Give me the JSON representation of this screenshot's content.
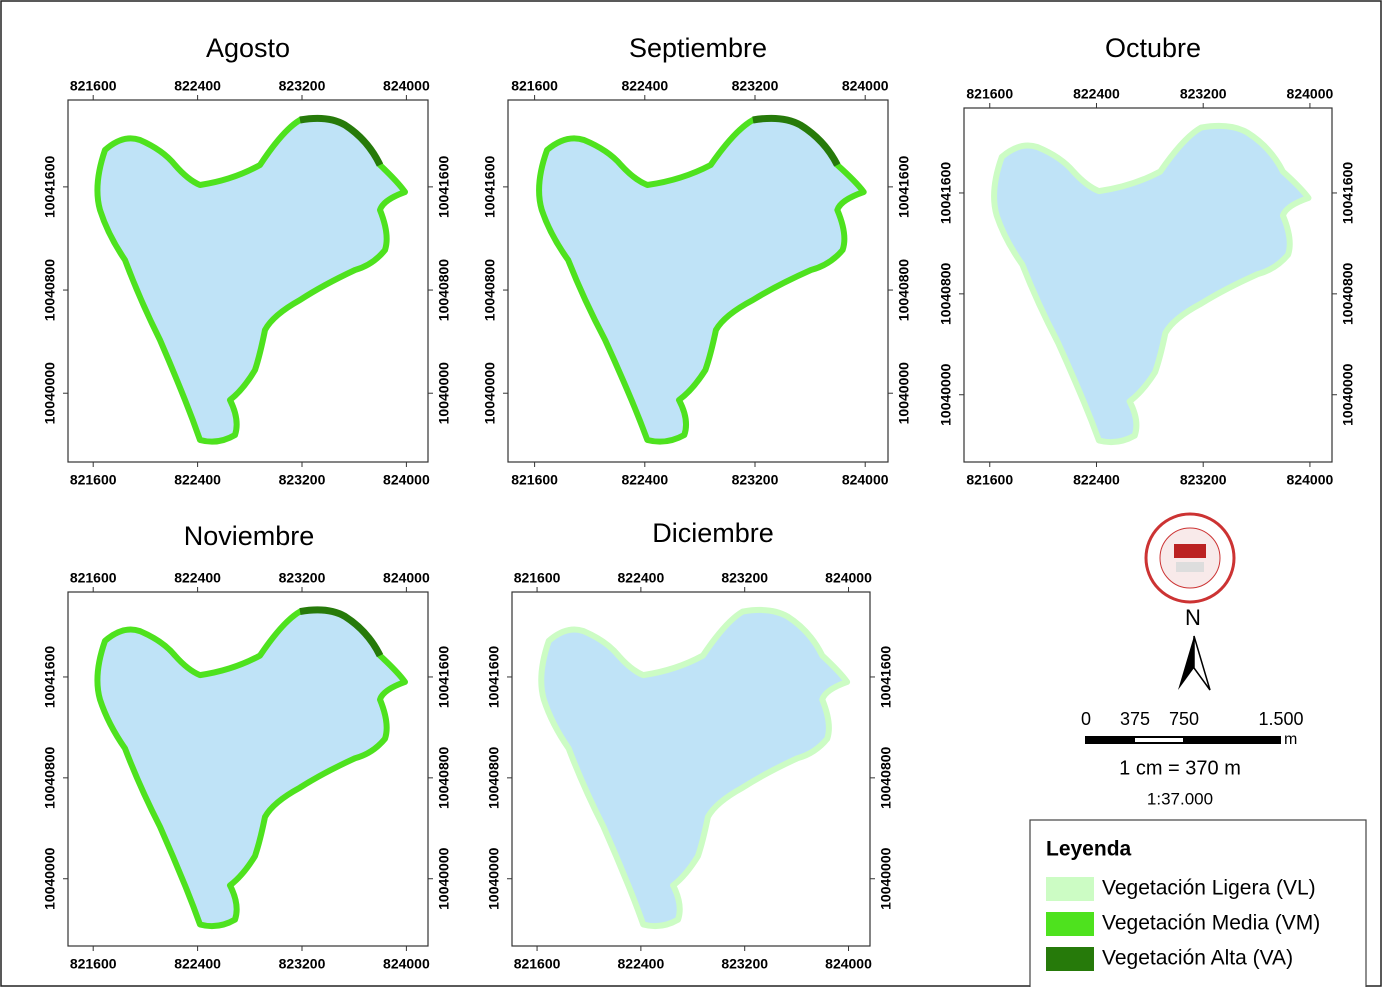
{
  "panels": [
    {
      "title": "Agosto",
      "x_ticks": [
        821600,
        822400,
        823200,
        824000
      ],
      "y_ticks": [
        10041600,
        10040800,
        10040000
      ]
    },
    {
      "title": "Septiembre",
      "x_ticks": [
        821600,
        822400,
        823200,
        824000
      ],
      "y_ticks": [
        10041600,
        10040800,
        10040000
      ]
    },
    {
      "title": "Octubre",
      "x_ticks": [
        821600,
        822400,
        823200,
        824000
      ],
      "y_ticks": [
        10041600,
        10040800,
        10040000
      ]
    },
    {
      "title": "Noviembre",
      "x_ticks": [
        821600,
        822400,
        823200,
        824000
      ],
      "y_ticks": [
        10041600,
        10040800,
        10040000
      ]
    },
    {
      "title": "Diciembre",
      "x_ticks": [
        821600,
        822400,
        823200,
        824000
      ],
      "y_ticks": [
        10041600,
        10040800,
        10040000
      ]
    }
  ],
  "north": "N",
  "scale_bar": {
    "labels": [
      "0",
      "375",
      "750",
      "1.500"
    ],
    "unit": "m",
    "equivalence": "1 cm = 370 m",
    "ratio": "1:37.000"
  },
  "legend": {
    "title": "Leyenda",
    "items": [
      {
        "label": "Vegetación Ligera (VL)",
        "color": "#ccfcc4"
      },
      {
        "label": "Vegetación Media (VM)",
        "color": "#4ee21e"
      },
      {
        "label": "Vegetación Alta (VA)",
        "color": "#267a0a"
      }
    ]
  }
}
